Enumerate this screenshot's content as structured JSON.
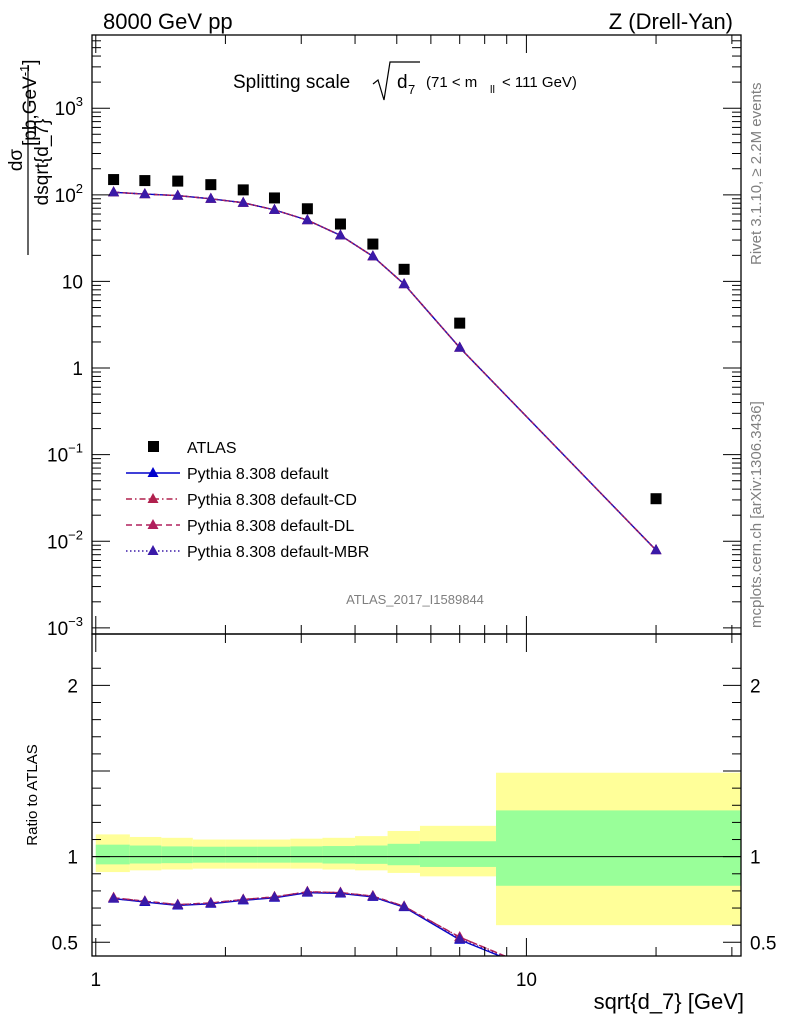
{
  "header": {
    "left": "8000 GeV pp",
    "right": "Z (Drell-Yan)"
  },
  "side_text": {
    "rivet": "Rivet 3.1.10, ≥ 2.2M events",
    "mcplots": "mcplots.cern.ch [arXiv:1306.3436]"
  },
  "chart_data": [
    {
      "type": "scatter",
      "panel": "main",
      "title_parts": [
        "Splitting scale",
        "d",
        "7",
        "(71 < m",
        "ll",
        "< 111 GeV)"
      ],
      "ylabel_numerator": "dσ",
      "ylabel_denominator": "dsqrt{d_7}",
      "ylabel_units": "[pb,GeV",
      "ylabel_units_exp": "-1",
      "ylabel_units_end": "]",
      "xscale": "log",
      "yscale": "log",
      "xlim": [
        0.98,
        31.5
      ],
      "ylim": [
        0.00085,
        7000
      ],
      "ytick_labels": [
        {
          "value": 1000,
          "base": "10",
          "exp": "3"
        },
        {
          "value": 100,
          "base": "10",
          "exp": "2"
        },
        {
          "value": 10,
          "base": "10",
          "exp": ""
        },
        {
          "value": 1,
          "base": "1",
          "exp": ""
        },
        {
          "value": 0.1,
          "base": "10",
          "exp": "−1"
        },
        {
          "value": 0.01,
          "base": "10",
          "exp": "−2"
        },
        {
          "value": 0.001,
          "base": "10",
          "exp": "−3"
        }
      ],
      "watermark": "ATLAS_2017_I1589844",
      "legend_position": "bottom-left",
      "series": [
        {
          "name": "ATLAS",
          "style": "data-square",
          "color": "#000000",
          "x": [
            1.1,
            1.3,
            1.55,
            1.85,
            2.2,
            2.6,
            3.1,
            3.7,
            4.4,
            5.2,
            7.0,
            20.0
          ],
          "y": [
            150,
            146,
            144,
            131,
            114,
            92,
            69,
            46,
            27,
            13.8,
            3.3,
            0.031
          ]
        },
        {
          "name": "Pythia 8.308 default",
          "style": "solid",
          "color": "#0000cc",
          "x": [
            1.1,
            1.3,
            1.55,
            1.85,
            2.2,
            2.6,
            3.1,
            3.7,
            4.4,
            5.2,
            7.0,
            20.0
          ],
          "y": [
            107,
            102,
            98,
            90,
            81,
            67,
            51,
            34,
            19.5,
            9.3,
            1.72,
            0.0079
          ]
        },
        {
          "name": "Pythia 8.308 default-CD",
          "style": "dashdot",
          "color": "#b0204d",
          "x": [
            1.1,
            1.3,
            1.55,
            1.85,
            2.2,
            2.6,
            3.1,
            3.7,
            4.4,
            5.2,
            7.0,
            20.0
          ],
          "y": [
            107,
            102,
            98,
            90,
            81,
            67,
            51,
            34,
            19.5,
            9.3,
            1.72,
            0.0079
          ]
        },
        {
          "name": "Pythia 8.308 default-DL",
          "style": "dashed",
          "color": "#b0205d",
          "x": [
            1.1,
            1.3,
            1.55,
            1.85,
            2.2,
            2.6,
            3.1,
            3.7,
            4.4,
            5.2,
            7.0,
            20.0
          ],
          "y": [
            107,
            102,
            98,
            90,
            81,
            67,
            51,
            34,
            19.5,
            9.3,
            1.72,
            0.0079
          ]
        },
        {
          "name": "Pythia 8.308 default-MBR",
          "style": "dotted",
          "color": "#3a1aa8",
          "x": [
            1.1,
            1.3,
            1.55,
            1.85,
            2.2,
            2.6,
            3.1,
            3.7,
            4.4,
            5.2,
            7.0,
            20.0
          ],
          "y": [
            107,
            102,
            98,
            90,
            81,
            67,
            51,
            34,
            19.5,
            9.3,
            1.72,
            0.0079
          ]
        }
      ]
    },
    {
      "type": "line",
      "panel": "ratio",
      "ylabel": "Ratio to ATLAS",
      "xlabel": "sqrt{d_7} [GeV]",
      "xscale": "log",
      "xlim": [
        0.98,
        31.5
      ],
      "ylim": [
        0.42,
        2.3
      ],
      "ytick_labels": [
        {
          "value": 0.5,
          "label": "0.5"
        },
        {
          "value": 1,
          "label": "1"
        },
        {
          "value": 2,
          "label": "2"
        }
      ],
      "xtick_labels": [
        {
          "value": 1,
          "label": "1"
        },
        {
          "value": 10,
          "label": "10"
        }
      ],
      "bands": {
        "bin_edges": [
          1.0,
          1.2,
          1.42,
          1.68,
          2.0,
          2.38,
          2.83,
          3.36,
          4.0,
          4.76,
          5.66,
          8.5,
          31.5
        ],
        "yellow_lo": [
          0.91,
          0.92,
          0.925,
          0.93,
          0.93,
          0.93,
          0.93,
          0.925,
          0.92,
          0.905,
          0.885,
          0.6
        ],
        "yellow_hi": [
          1.13,
          1.115,
          1.11,
          1.1,
          1.1,
          1.1,
          1.105,
          1.11,
          1.12,
          1.15,
          1.18,
          1.49
        ],
        "green_lo": [
          0.955,
          0.96,
          0.962,
          0.965,
          0.965,
          0.965,
          0.965,
          0.96,
          0.958,
          0.95,
          0.94,
          0.83
        ],
        "green_hi": [
          1.07,
          1.065,
          1.06,
          1.058,
          1.058,
          1.058,
          1.06,
          1.062,
          1.065,
          1.075,
          1.09,
          1.27
        ],
        "yellow_color": "#ffff99",
        "green_color": "#99ff99"
      },
      "series": [
        {
          "name": "Pythia 8.308 default",
          "color": "#0000cc",
          "x": [
            1.1,
            1.3,
            1.55,
            1.85,
            2.2,
            2.6,
            3.1,
            3.7,
            4.4,
            5.2,
            7.0,
            10.5
          ],
          "y": [
            0.755,
            0.735,
            0.715,
            0.725,
            0.745,
            0.76,
            0.79,
            0.785,
            0.765,
            0.705,
            0.515,
            0.335
          ]
        },
        {
          "name": "Pythia 8.308 default-CD",
          "color": "#b0204d",
          "x": [
            1.1,
            1.3,
            1.55,
            1.85,
            2.2,
            2.6,
            3.1,
            3.7,
            4.4,
            5.2,
            7.0,
            10.5
          ],
          "y": [
            0.76,
            0.74,
            0.72,
            0.73,
            0.75,
            0.765,
            0.795,
            0.79,
            0.77,
            0.71,
            0.53,
            0.345
          ]
        },
        {
          "name": "Pythia 8.308 default-DL",
          "color": "#b0205d",
          "x": [
            1.1,
            1.3,
            1.55,
            1.85,
            2.2,
            2.6,
            3.1,
            3.7,
            4.4,
            5.2,
            7.0,
            10.5
          ],
          "y": [
            0.76,
            0.74,
            0.72,
            0.73,
            0.75,
            0.765,
            0.795,
            0.79,
            0.77,
            0.71,
            0.53,
            0.345
          ]
        },
        {
          "name": "Pythia 8.308 default-MBR",
          "color": "#3a1aa8",
          "x": [
            1.1,
            1.3,
            1.55,
            1.85,
            2.2,
            2.6,
            3.1,
            3.7,
            4.4,
            5.2,
            7.0,
            10.5
          ],
          "y": [
            0.755,
            0.738,
            0.718,
            0.727,
            0.748,
            0.762,
            0.792,
            0.787,
            0.767,
            0.707,
            0.52,
            0.34
          ]
        }
      ]
    }
  ]
}
